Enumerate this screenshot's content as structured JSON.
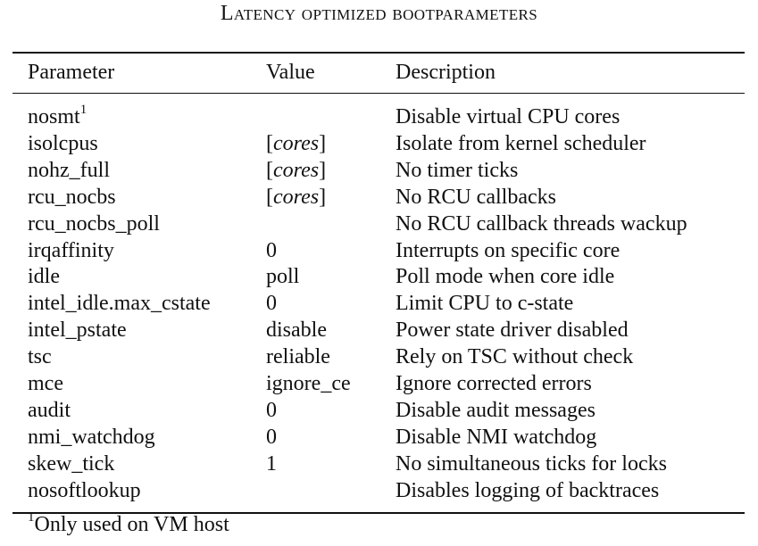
{
  "caption": "Latency optimized bootparameters",
  "columns": [
    "Parameter",
    "Value",
    "Description"
  ],
  "rows": [
    {
      "parameter": "nosmt",
      "marker": "1",
      "value": "",
      "value_italic": "",
      "value_close": "",
      "description": "Disable virtual CPU cores"
    },
    {
      "parameter": "isolcpus",
      "marker": "",
      "value": "[",
      "value_italic": "cores",
      "value_close": "]",
      "description": "Isolate from kernel scheduler"
    },
    {
      "parameter": "nohz_full",
      "marker": "",
      "value": "[",
      "value_italic": "cores",
      "value_close": "]",
      "description": "No timer ticks"
    },
    {
      "parameter": "rcu_nocbs",
      "marker": "",
      "value": "[",
      "value_italic": "cores",
      "value_close": "]",
      "description": "No RCU callbacks"
    },
    {
      "parameter": "rcu_nocbs_poll",
      "marker": "",
      "value": "",
      "value_italic": "",
      "value_close": "",
      "description": "No RCU callback threads wackup"
    },
    {
      "parameter": "irqaffinity",
      "marker": "",
      "value": "0",
      "value_italic": "",
      "value_close": "",
      "description": "Interrupts on specific core"
    },
    {
      "parameter": "idle",
      "marker": "",
      "value": "poll",
      "value_italic": "",
      "value_close": "",
      "description": "Poll mode when core idle"
    },
    {
      "parameter": "intel_idle.max_cstate",
      "marker": "",
      "value": "0",
      "value_italic": "",
      "value_close": "",
      "description": "Limit CPU to c-state"
    },
    {
      "parameter": "intel_pstate",
      "marker": "",
      "value": "disable",
      "value_italic": "",
      "value_close": "",
      "description": "Power state driver disabled"
    },
    {
      "parameter": "tsc",
      "marker": "",
      "value": "reliable",
      "value_italic": "",
      "value_close": "",
      "description": "Rely on TSC without check"
    },
    {
      "parameter": "mce",
      "marker": "",
      "value": "ignore_ce",
      "value_italic": "",
      "value_close": "",
      "description": "Ignore corrected errors"
    },
    {
      "parameter": "audit",
      "marker": "",
      "value": "0",
      "value_italic": "",
      "value_close": "",
      "description": "Disable audit messages"
    },
    {
      "parameter": "nmi_watchdog",
      "marker": "",
      "value": "0",
      "value_italic": "",
      "value_close": "",
      "description": "Disable NMI watchdog"
    },
    {
      "parameter": "skew_tick",
      "marker": "",
      "value": "1",
      "value_italic": "",
      "value_close": "",
      "description": "No simultaneous ticks for locks"
    },
    {
      "parameter": "nosoftlookup",
      "marker": "",
      "value": "",
      "value_italic": "",
      "value_close": "",
      "description": "Disables logging of backtraces"
    }
  ],
  "footnote": {
    "marker": "1",
    "text": "Only used on VM host"
  }
}
